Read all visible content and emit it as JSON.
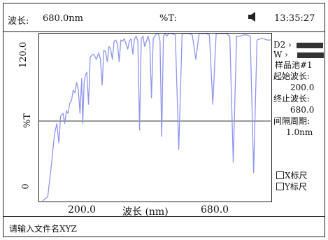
{
  "header": {
    "wavelength_label": "波长:",
    "wavelength_value": "680.0nm",
    "mode_label": "%T:",
    "mode_value": "",
    "speaker_icon": "speaker-icon",
    "time": "13:35:27"
  },
  "sidebar": {
    "d2_label": "D2",
    "w_label": "W",
    "sample_cell": "样品池#1",
    "start_label": "起始波长:",
    "start_value": "200.0",
    "end_label": "终止波长:",
    "end_value": "680.0",
    "interval_label": "间隔周期:",
    "interval_value": "1.0nm",
    "x_scale_label": "X标尺",
    "y_scale_label": "Y标尺"
  },
  "status_bar": {
    "prompt": "请输入文件名XYZ"
  },
  "chart_data": {
    "type": "line",
    "ylabel": "%T",
    "xlabel": "波长 (nm)",
    "y_ticks": [
      "0",
      "120.0"
    ],
    "x_ticks": [
      "200.0",
      "680.0"
    ],
    "xlim": [
      100,
      780
    ],
    "ylim": [
      0,
      130
    ],
    "reference_line_y": 62,
    "series": [
      {
        "color": "#8e95ee",
        "x": [
          110,
          125,
          135,
          145,
          152,
          158,
          163,
          170,
          175,
          180,
          185,
          190,
          195,
          200,
          205,
          210,
          215,
          220,
          225,
          228,
          232,
          236,
          240,
          245,
          250,
          260,
          268,
          275,
          280,
          285,
          290,
          295,
          300,
          305,
          310,
          315,
          320,
          325,
          330,
          335,
          340,
          345,
          350,
          355,
          360,
          365,
          370,
          375,
          380,
          385,
          390,
          395,
          400,
          405,
          410,
          415,
          420,
          425,
          430,
          435,
          440,
          445,
          450,
          455,
          460,
          465,
          470,
          475,
          480,
          490,
          500,
          510,
          520,
          530,
          540,
          550,
          560,
          570,
          580,
          590,
          600,
          610,
          620,
          630,
          640,
          650,
          660,
          670,
          680,
          690,
          700,
          710,
          720,
          730,
          740,
          750,
          760,
          770,
          780
        ],
        "y": [
          0,
          3,
          25,
          52,
          60,
          45,
          66,
          68,
          60,
          70,
          68,
          76,
          78,
          86,
          84,
          92,
          86,
          68,
          95,
          60,
          92,
          98,
          100,
          75,
          112,
          114,
          110,
          115,
          110,
          90,
          117,
          116,
          108,
          120,
          118,
          110,
          124,
          125,
          122,
          108,
          125,
          124,
          126,
          122,
          118,
          124,
          126,
          114,
          126,
          128,
          124,
          55,
          126,
          128,
          120,
          124,
          128,
          122,
          80,
          126,
          128,
          130,
          130,
          124,
          50,
          128,
          130,
          128,
          130,
          130,
          129,
          40,
          130,
          130,
          130,
          129,
          110,
          130,
          130,
          130,
          129,
          75,
          130,
          130,
          130,
          130,
          128,
          30,
          128,
          128,
          129,
          129,
          128,
          22,
          125,
          126,
          126,
          125,
          125
        ]
      }
    ]
  }
}
